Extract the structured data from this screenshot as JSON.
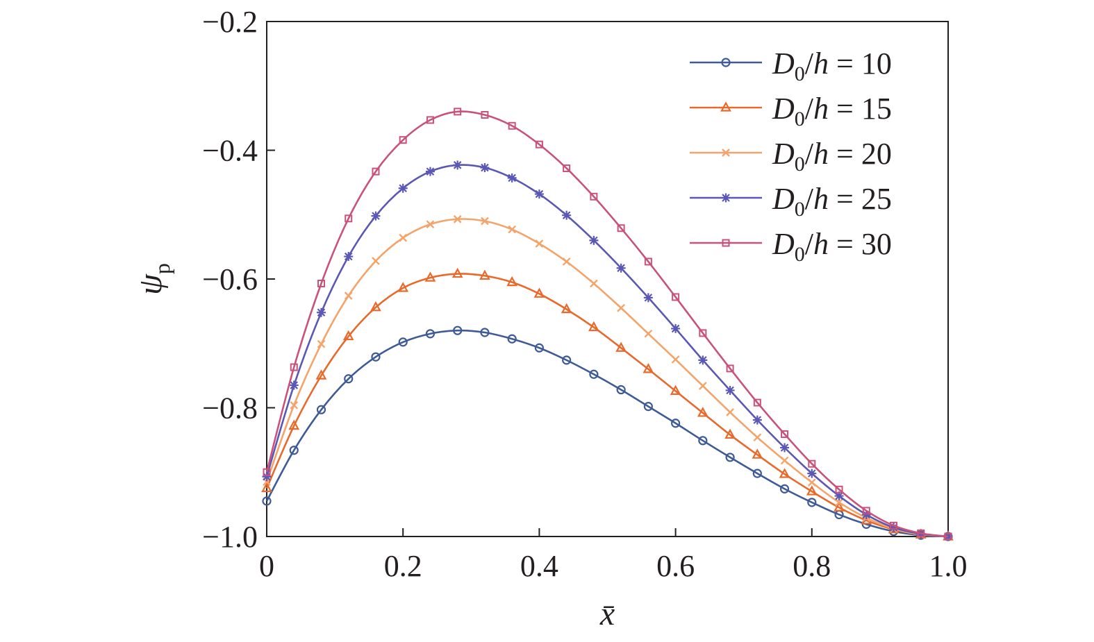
{
  "chart_data": {
    "type": "line",
    "xlabel": "x̄",
    "ylabel": "ψ",
    "ylabel_subscript": "p",
    "xlim": [
      0,
      1.0
    ],
    "ylim": [
      -1.0,
      -0.2
    ],
    "xticks": [
      0,
      0.2,
      0.4,
      0.6,
      0.8,
      1.0
    ],
    "xtick_labels": [
      "0",
      "0.2",
      "0.4",
      "0.6",
      "0.8",
      "1.0"
    ],
    "yticks": [
      -0.2,
      -0.4,
      -0.6,
      -0.8,
      -1.0
    ],
    "ytick_labels": [
      "−0.2",
      "−0.4",
      "−0.6",
      "−0.8",
      "−1.0"
    ],
    "grid": false,
    "legend_position": "top-right",
    "legend_param": "D",
    "legend_param_subscript": "0",
    "legend_param_rest": "/h = ",
    "x": [
      0,
      0.04,
      0.08,
      0.12,
      0.16,
      0.2,
      0.24,
      0.28,
      0.32,
      0.36,
      0.4,
      0.44,
      0.48,
      0.52,
      0.56,
      0.6,
      0.64,
      0.68,
      0.72,
      0.76,
      0.8,
      0.84,
      0.88,
      0.92,
      0.96,
      1.0
    ],
    "series": [
      {
        "name": "D0/h = 10",
        "value_label": "10",
        "color": "#3e5a97",
        "marker": "circle",
        "values": [
          -0.945,
          -0.866,
          -0.803,
          -0.755,
          -0.721,
          -0.698,
          -0.685,
          -0.68,
          -0.683,
          -0.693,
          -0.707,
          -0.726,
          -0.748,
          -0.772,
          -0.798,
          -0.824,
          -0.851,
          -0.877,
          -0.902,
          -0.926,
          -0.947,
          -0.966,
          -0.981,
          -0.992,
          -0.998,
          -1.0
        ]
      },
      {
        "name": "D0/h = 15",
        "value_label": "15",
        "color": "#e8692a",
        "marker": "triangle",
        "values": [
          -0.925,
          -0.828,
          -0.75,
          -0.689,
          -0.644,
          -0.614,
          -0.598,
          -0.592,
          -0.595,
          -0.605,
          -0.623,
          -0.647,
          -0.675,
          -0.707,
          -0.74,
          -0.774,
          -0.808,
          -0.842,
          -0.873,
          -0.903,
          -0.93,
          -0.955,
          -0.975,
          -0.989,
          -0.997,
          -1.0
        ]
      },
      {
        "name": "D0/h = 20",
        "value_label": "20",
        "color": "#f4a46a",
        "marker": "x",
        "values": [
          -0.915,
          -0.796,
          -0.701,
          -0.626,
          -0.572,
          -0.536,
          -0.515,
          -0.507,
          -0.51,
          -0.523,
          -0.545,
          -0.573,
          -0.607,
          -0.645,
          -0.685,
          -0.725,
          -0.766,
          -0.807,
          -0.846,
          -0.882,
          -0.916,
          -0.947,
          -0.971,
          -0.988,
          -0.997,
          -1.0
        ]
      },
      {
        "name": "D0/h = 25",
        "value_label": "25",
        "color": "#5b57b4",
        "marker": "star",
        "values": [
          -0.907,
          -0.765,
          -0.652,
          -0.565,
          -0.502,
          -0.459,
          -0.433,
          -0.423,
          -0.427,
          -0.443,
          -0.468,
          -0.501,
          -0.54,
          -0.583,
          -0.629,
          -0.677,
          -0.726,
          -0.773,
          -0.819,
          -0.862,
          -0.902,
          -0.937,
          -0.966,
          -0.986,
          -0.996,
          -1.0
        ]
      },
      {
        "name": "D0/h = 30",
        "value_label": "30",
        "color": "#c9527a",
        "marker": "square",
        "values": [
          -0.9,
          -0.737,
          -0.607,
          -0.506,
          -0.433,
          -0.384,
          -0.353,
          -0.34,
          -0.345,
          -0.362,
          -0.391,
          -0.428,
          -0.472,
          -0.521,
          -0.573,
          -0.628,
          -0.684,
          -0.739,
          -0.792,
          -0.841,
          -0.887,
          -0.927,
          -0.96,
          -0.983,
          -0.995,
          -1.0
        ]
      }
    ]
  }
}
